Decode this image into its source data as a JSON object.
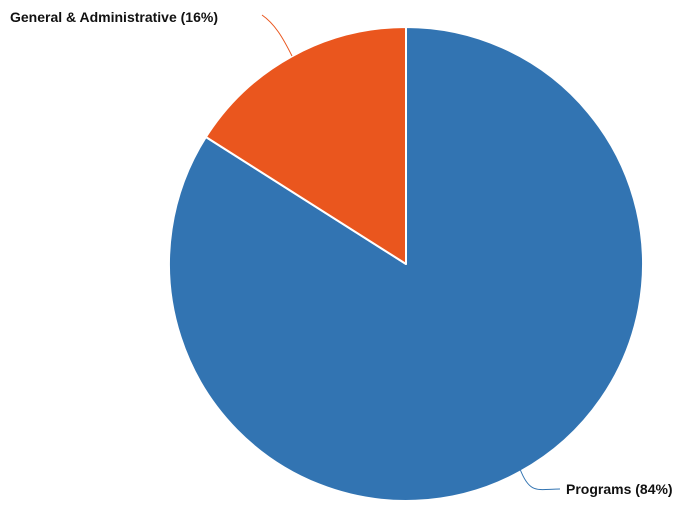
{
  "chart_data": {
    "type": "pie",
    "title": "",
    "start": "top",
    "direction": "clockwise",
    "slices": [
      {
        "label": "Programs",
        "value": 84,
        "display": "Programs (84%)",
        "color": "#3274b2"
      },
      {
        "label": "General & Administrative",
        "value": 16,
        "display": "General & Administrative (16%)",
        "color": "#ea561e"
      }
    ]
  }
}
